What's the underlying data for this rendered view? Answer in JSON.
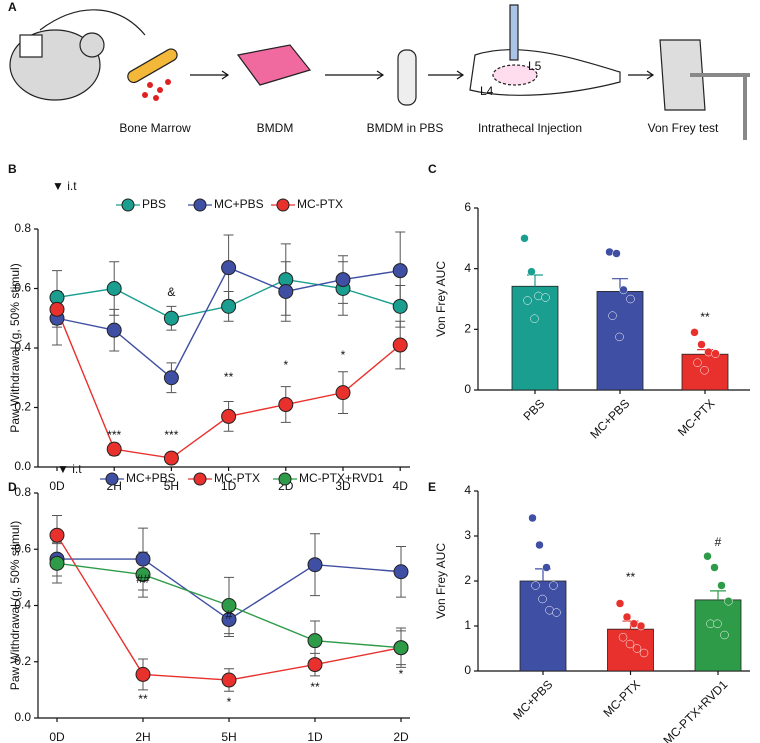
{
  "panel_labels": [
    "A",
    "B",
    "C",
    "D",
    "E"
  ],
  "schematic": {
    "steps": [
      "Bone Marrow",
      "BMDM",
      "BMDM in PBS",
      "Intrathecal Injection",
      "Von Frey test"
    ],
    "spine_labels": [
      "L5",
      "L4"
    ]
  },
  "chart_data": [
    {
      "type": "line",
      "note": "▼ i.t",
      "y_label": "Paw Withdrawal (g, 50% stimul)",
      "categories": [
        "0D",
        "2H",
        "5H",
        "1D",
        "2D",
        "3D",
        "4D"
      ],
      "series": [
        {
          "name": "PBS",
          "color": "#1a9e8f",
          "values": [
            0.57,
            0.6,
            0.5,
            0.54,
            0.63,
            0.6,
            0.54
          ],
          "errors": [
            0.09,
            0.09,
            0.04,
            0.05,
            0.12,
            0.09,
            0.07
          ]
        },
        {
          "name": "MC+PBS",
          "color": "#3f4fa3",
          "values": [
            0.5,
            0.46,
            0.3,
            0.67,
            0.59,
            0.63,
            0.66
          ],
          "errors": [
            0.09,
            0.07,
            0.05,
            0.11,
            0.1,
            0.08,
            0.13
          ]
        },
        {
          "name": "MC-PTX",
          "color": "#e8312d",
          "values": [
            0.53,
            0.06,
            0.03,
            0.17,
            0.21,
            0.25,
            0.41
          ],
          "errors": [
            0.06,
            0.02,
            0.01,
            0.05,
            0.06,
            0.07,
            0.08
          ]
        }
      ],
      "ylim": [
        0,
        0.8
      ],
      "yticks": [
        {
          "value": 0,
          "label": "0.0"
        },
        {
          "value": 0.2,
          "label": "0.2"
        },
        {
          "value": 0.4,
          "label": "0.4"
        },
        {
          "value": 0.6,
          "label": "0.6"
        },
        {
          "value": 0.8,
          "label": "0.8"
        }
      ],
      "annotations": [
        "***",
        "&",
        "***",
        "**",
        "*",
        "*"
      ]
    },
    {
      "type": "bar",
      "y_label": "Von Frey AUC",
      "categories": [
        "PBS",
        "MC+PBS",
        "MC-PTX"
      ],
      "values": [
        3.42,
        3.25,
        1.18
      ],
      "errors": [
        0.37,
        0.42,
        0.15
      ],
      "colors": [
        "#1a9e8f",
        "#3f4fa3",
        "#e8312d"
      ],
      "points": [
        [
          5.0,
          3.9,
          3.1,
          3.05,
          2.95,
          2.35
        ],
        [
          4.55,
          4.5,
          3.3,
          3.0,
          2.45,
          1.75
        ],
        [
          1.9,
          1.5,
          1.25,
          1.2,
          0.9,
          0.65
        ]
      ],
      "ylim": [
        0,
        6
      ],
      "yticks": [
        0,
        2,
        4,
        6
      ],
      "annotations": [
        "**"
      ]
    },
    {
      "type": "line",
      "note": "▼ i.t",
      "y_label": "Paw Withdrawal (g, 50% stimul)",
      "categories": [
        "0D",
        "2H",
        "5H",
        "1D",
        "2D"
      ],
      "series": [
        {
          "name": "MC+PBS",
          "color": "#3f4fa3",
          "values": [
            0.565,
            0.565,
            0.35,
            0.545,
            0.52
          ],
          "errors": [
            0.06,
            0.11,
            0.06,
            0.11,
            0.09
          ]
        },
        {
          "name": "MC-PTX",
          "color": "#e8312d",
          "values": [
            0.65,
            0.155,
            0.135,
            0.19,
            0.25
          ],
          "errors": [
            0.07,
            0.055,
            0.04,
            0.04,
            0.07
          ]
        },
        {
          "name": "MC-PTX+RVD1",
          "color": "#2e9b48",
          "values": [
            0.55,
            0.51,
            0.4,
            0.275,
            0.25
          ],
          "errors": [
            0.07,
            0.08,
            0.1,
            0.07,
            0.06
          ]
        }
      ],
      "ylim": [
        0,
        0.8
      ],
      "yticks": [
        {
          "value": 0,
          "label": "0.0"
        },
        {
          "value": 0.2,
          "label": "0.2"
        },
        {
          "value": 0.4,
          "label": "0.4"
        },
        {
          "value": 0.6,
          "label": "0.6"
        },
        {
          "value": 0.8,
          "label": "0.8"
        }
      ],
      "annotations": [
        "##",
        "**",
        "#",
        "*",
        "**",
        "*"
      ]
    },
    {
      "type": "bar",
      "y_label": "Von Frey AUC",
      "categories": [
        "MC+PBS",
        "MC-PTX",
        "MC-PTX+RVD1"
      ],
      "values": [
        2.0,
        0.93,
        1.58
      ],
      "errors": [
        0.27,
        0.18,
        0.2
      ],
      "colors": [
        "#3f4fa3",
        "#e8312d",
        "#2e9b48"
      ],
      "points": [
        [
          3.4,
          2.8,
          2.3,
          1.9,
          1.9,
          1.6,
          1.35,
          1.3
        ],
        [
          1.5,
          1.2,
          1.05,
          1.0,
          0.75,
          0.6,
          0.5,
          0.4
        ],
        [
          2.55,
          2.3,
          1.9,
          1.55,
          1.05,
          1.05,
          0.8
        ]
      ],
      "ylim": [
        0,
        4
      ],
      "yticks": [
        0,
        1,
        2,
        3,
        4
      ],
      "annotations": [
        "**",
        "#"
      ]
    }
  ]
}
